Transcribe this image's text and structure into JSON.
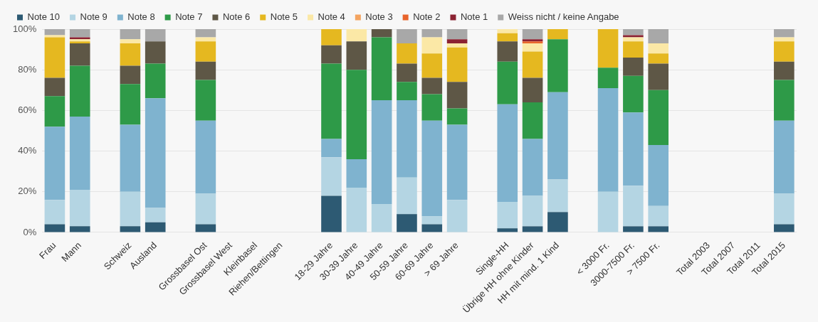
{
  "chart_data": {
    "type": "bar",
    "stacked": true,
    "grid": "y",
    "legend": "top left",
    "categories": [
      "Frau",
      "Mann",
      null,
      "Schweiz",
      "Ausland",
      null,
      "Grossbasel Ost",
      "Grossbasel West",
      "Kleinbasel",
      "Riehen/Bettingen",
      null,
      "18-29 Jahre",
      "30-39 Jahre",
      "40-49 Jahre",
      "50-59 Jahre",
      "60-69 Jahre",
      "> 69 Jahre",
      null,
      "Single-HH",
      "Übrige HH ohne Kinder",
      "HH mit mind. 1 Kind",
      null,
      "< 3000 Fr.",
      "3000-7500 Fr.",
      "> 7500 Fr.",
      null,
      "Total 2003",
      "Total 2007",
      "Total 2011",
      "Total 2015"
    ],
    "ylim": [
      0,
      100
    ],
    "yticks": [
      {
        "value": 0,
        "label": "0%"
      },
      {
        "value": 20,
        "label": "20%"
      },
      {
        "value": 40,
        "label": "40%"
      },
      {
        "value": 60,
        "label": "60%"
      },
      {
        "value": 80,
        "label": "80%"
      },
      {
        "value": 100,
        "label": "100%"
      }
    ],
    "series": [
      {
        "name": "Note 10",
        "color": "#2d5a73",
        "values": [
          4,
          3,
          null,
          3,
          5,
          null,
          4,
          null,
          null,
          null,
          null,
          18,
          0,
          0,
          9,
          4,
          0,
          null,
          2,
          3,
          10,
          null,
          0,
          3,
          3,
          null,
          null,
          null,
          null,
          4
        ]
      },
      {
        "name": "Note 9",
        "color": "#b4d5e3",
        "values": [
          12,
          18,
          null,
          17,
          7,
          null,
          15,
          null,
          null,
          null,
          null,
          19,
          22,
          14,
          18,
          4,
          16,
          null,
          13,
          15,
          16,
          null,
          20,
          20,
          10,
          null,
          null,
          null,
          null,
          15
        ]
      },
      {
        "name": "Note 8",
        "color": "#7fb3cf",
        "values": [
          36,
          36,
          null,
          33,
          54,
          null,
          36,
          null,
          null,
          null,
          null,
          9,
          14,
          51,
          38,
          47,
          37,
          null,
          48,
          28,
          43,
          null,
          51,
          36,
          30,
          null,
          null,
          null,
          null,
          36
        ]
      },
      {
        "name": "Note 7",
        "color": "#2e9a48",
        "values": [
          15,
          25,
          null,
          20,
          17,
          null,
          20,
          null,
          null,
          null,
          null,
          37,
          44,
          31,
          9,
          13,
          8,
          null,
          21,
          18,
          26,
          null,
          10,
          18,
          27,
          null,
          null,
          null,
          null,
          20
        ]
      },
      {
        "name": "Note 6",
        "color": "#5e5746",
        "values": [
          9,
          11,
          null,
          9,
          11,
          null,
          9,
          null,
          null,
          null,
          null,
          9,
          14,
          4,
          9,
          8,
          13,
          null,
          10,
          12,
          0,
          null,
          0,
          9,
          13,
          null,
          null,
          null,
          null,
          9
        ]
      },
      {
        "name": "Note 5",
        "color": "#e5b820",
        "values": [
          20,
          1,
          null,
          11,
          0,
          null,
          10,
          null,
          null,
          null,
          null,
          8,
          0,
          0,
          10,
          12,
          17,
          null,
          4,
          13,
          5,
          null,
          19,
          8,
          5,
          null,
          null,
          null,
          null,
          10
        ]
      },
      {
        "name": "Note 4",
        "color": "#fbe8a6",
        "values": [
          1,
          1,
          null,
          2,
          0,
          null,
          2,
          null,
          null,
          null,
          null,
          0,
          6,
          0,
          0,
          8,
          2,
          null,
          2,
          4,
          0,
          null,
          0,
          2,
          5,
          null,
          null,
          null,
          null,
          2
        ]
      },
      {
        "name": "Note 3",
        "color": "#f4a460",
        "values": [
          0,
          0,
          null,
          0,
          0,
          null,
          0,
          null,
          null,
          null,
          null,
          0,
          0,
          0,
          0,
          0,
          0,
          null,
          0,
          0,
          0,
          null,
          0,
          0,
          0,
          null,
          null,
          null,
          null,
          0
        ]
      },
      {
        "name": "Note 2",
        "color": "#e8642c",
        "values": [
          0,
          0,
          null,
          0,
          0,
          null,
          0,
          null,
          null,
          null,
          null,
          0,
          0,
          0,
          0,
          0,
          0,
          null,
          0,
          1,
          0,
          null,
          0,
          0,
          0,
          null,
          null,
          null,
          null,
          0
        ]
      },
      {
        "name": "Note 1",
        "color": "#8b2232",
        "values": [
          0,
          1,
          null,
          0,
          0,
          null,
          0,
          null,
          null,
          null,
          null,
          0,
          0,
          0,
          0,
          0,
          2,
          null,
          0,
          1,
          0,
          null,
          0,
          1,
          0,
          null,
          null,
          null,
          null,
          0
        ]
      },
      {
        "name": "Weiss nicht / keine Angabe",
        "color": "#a8a8a8",
        "values": [
          3,
          4,
          null,
          5,
          6,
          null,
          4,
          null,
          null,
          null,
          null,
          0,
          0,
          0,
          7,
          4,
          5,
          null,
          0,
          5,
          0,
          null,
          0,
          3,
          7,
          null,
          null,
          null,
          null,
          4
        ]
      }
    ]
  }
}
